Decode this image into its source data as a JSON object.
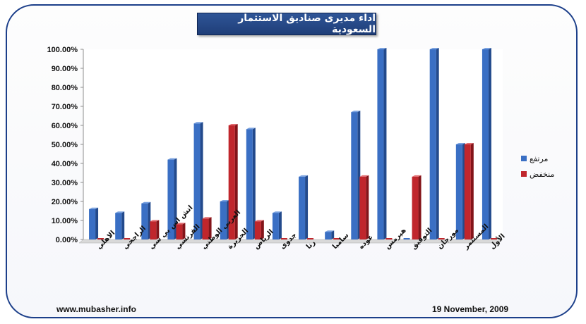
{
  "chart_data": {
    "type": "bar",
    "title": "اداء مديرى صناديق الاستثمار السعودية",
    "categories": [
      "الاهلي",
      "الراجحي",
      "اتش اس بي سي",
      "الفرنسي",
      "العربي الوطني",
      "الجزيرة",
      "الرياض",
      "جدوى",
      "رنا",
      "سامبا",
      "عوده",
      "هيرمس",
      "التوفيق",
      "مورجان",
      "المستثمر",
      "الأول"
    ],
    "series": [
      {
        "name": "مرتفع",
        "color": "#3a6fc4",
        "values": [
          16,
          14,
          19,
          42,
          61,
          20,
          58,
          14,
          33,
          4,
          67,
          100,
          0,
          100,
          50,
          100
        ]
      },
      {
        "name": "منخفض",
        "color": "#c0262c",
        "values": [
          0,
          0,
          9.5,
          8,
          11,
          60,
          9.5,
          0,
          0,
          0,
          33,
          0,
          33,
          0,
          50,
          0
        ]
      }
    ],
    "y_ticks": [
      "0.00%",
      "10.00%",
      "20.00%",
      "30.00%",
      "40.00%",
      "50.00%",
      "60.00%",
      "70.00%",
      "80.00%",
      "90.00%",
      "100.00%"
    ],
    "ylim": [
      0,
      100
    ],
    "legend_position": "right",
    "grid": false
  },
  "footer": {
    "website": "www.mubasher.info",
    "date": "19 November, 2009"
  }
}
